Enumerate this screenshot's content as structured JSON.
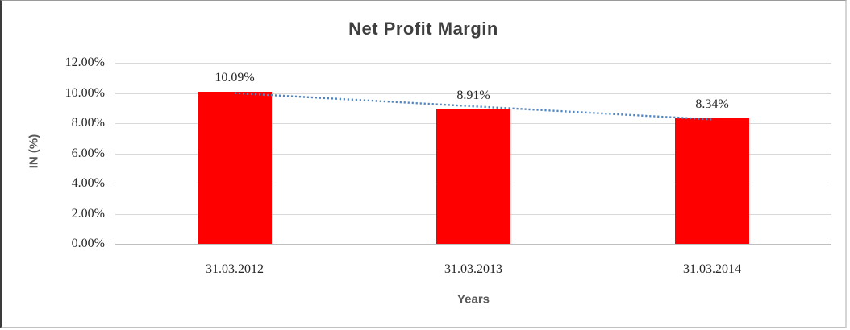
{
  "chart_data": {
    "type": "bar",
    "title": "Net Profit Margin",
    "categories": [
      "31.03.2012",
      "31.03.2013",
      "31.03.2014"
    ],
    "values": [
      10.09,
      8.91,
      8.34
    ],
    "value_labels": [
      "10.09%",
      "8.91%",
      "8.34%"
    ],
    "xlabel": "Years",
    "ylabel": "IN (%)",
    "ylim": [
      0,
      12
    ],
    "ytick_step": 2,
    "ytick_labels": [
      "0.00%",
      "2.00%",
      "4.00%",
      "6.00%",
      "8.00%",
      "10.00%",
      "12.00%"
    ],
    "grid": true,
    "legend": "none",
    "trendline": {
      "type": "linear",
      "style": "dotted",
      "start_value": 9.99,
      "end_value": 8.24
    }
  },
  "colors": {
    "bar": "#FF0000",
    "trendline": "#4E86C4",
    "gridline": "#D9D9D9",
    "axis_line": "#BFBFBF",
    "title_text": "#3F3F3F",
    "axis_title_text": "#595959",
    "tick_text": "#262626"
  }
}
